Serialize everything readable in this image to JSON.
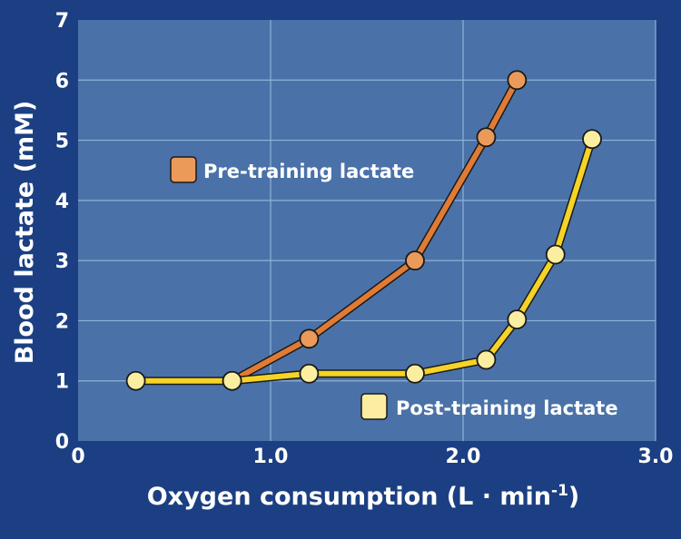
{
  "chart_data": {
    "type": "line",
    "xlabel_main": "Oxygen consumption (L · min",
    "xlabel_sup": "-1",
    "xlabel_end": ")",
    "ylabel": "Blood lactate (mM)",
    "xlim": [
      0,
      3.0
    ],
    "ylim": [
      0,
      7
    ],
    "x_ticks": [
      "0",
      "1.0",
      "2.0",
      "3.0"
    ],
    "y_ticks": [
      "0",
      "1",
      "2",
      "3",
      "4",
      "5",
      "6",
      "7"
    ],
    "grid": true,
    "colors": {
      "background": "#1b3f82",
      "plot_area": "#4a72a8",
      "grid": "#8fb2d6",
      "pre_line": "#e07b35",
      "pre_marker": "#eb9a5a",
      "post_line": "#f5d327",
      "post_marker": "#fbeea0"
    },
    "series": [
      {
        "name": "Pre-training lactate",
        "key": "pre",
        "x": [
          0.8,
          1.2,
          1.75,
          2.12,
          2.28
        ],
        "y": [
          1.0,
          1.7,
          3.0,
          5.05,
          6.0
        ]
      },
      {
        "name": "Post-training lactate",
        "key": "post",
        "x": [
          0.3,
          0.8,
          1.2,
          1.75,
          2.12,
          2.28,
          2.48,
          2.67
        ],
        "y": [
          1.0,
          1.0,
          1.12,
          1.12,
          1.35,
          2.02,
          3.1,
          5.02
        ]
      }
    ]
  }
}
